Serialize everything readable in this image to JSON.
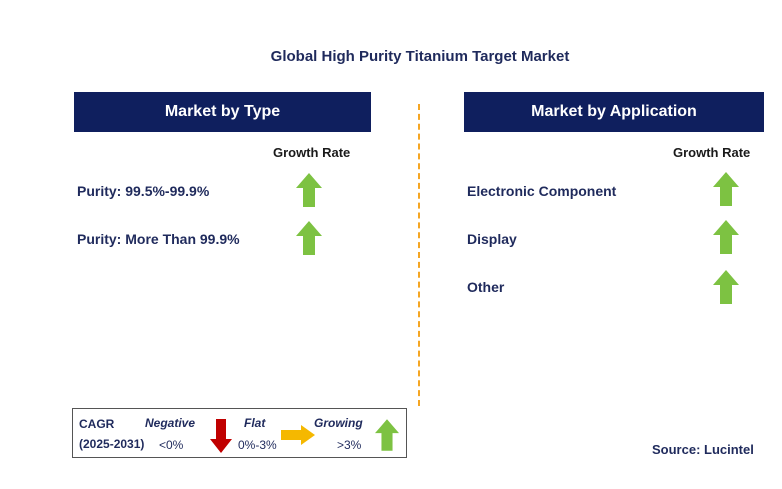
{
  "title": "Global High Purity Titanium Target Market",
  "left_panel": {
    "header": "Market by Type",
    "growth_label": "Growth Rate",
    "items": [
      {
        "label": "Purity: 99.5%-99.9%",
        "growth": "growing"
      },
      {
        "label": "Purity: More Than 99.9%",
        "growth": "growing"
      }
    ]
  },
  "right_panel": {
    "header": "Market by Application",
    "growth_label": "Growth Rate",
    "items": [
      {
        "label": "Electronic Component",
        "growth": "growing"
      },
      {
        "label": "Display",
        "growth": "growing"
      },
      {
        "label": "Other",
        "growth": "growing"
      }
    ]
  },
  "legend": {
    "cagr": "CAGR",
    "period": "(2025-2031)",
    "negative_label": "Negative",
    "negative_value": "<0%",
    "flat_label": "Flat",
    "flat_value": "0%-3%",
    "growing_label": "Growing",
    "growing_value": ">3%"
  },
  "source": "Source: Lucintel",
  "colors": {
    "header_bg": "#0f1f5e",
    "text": "#1f2a5c",
    "up_arrow": "#7dc242",
    "down_arrow": "#c00000",
    "flat_arrow": "#f5b800",
    "divider": "#f5a623"
  },
  "icons": {
    "growing": "up-arrow-icon",
    "negative": "down-arrow-icon",
    "flat": "right-arrow-icon"
  }
}
